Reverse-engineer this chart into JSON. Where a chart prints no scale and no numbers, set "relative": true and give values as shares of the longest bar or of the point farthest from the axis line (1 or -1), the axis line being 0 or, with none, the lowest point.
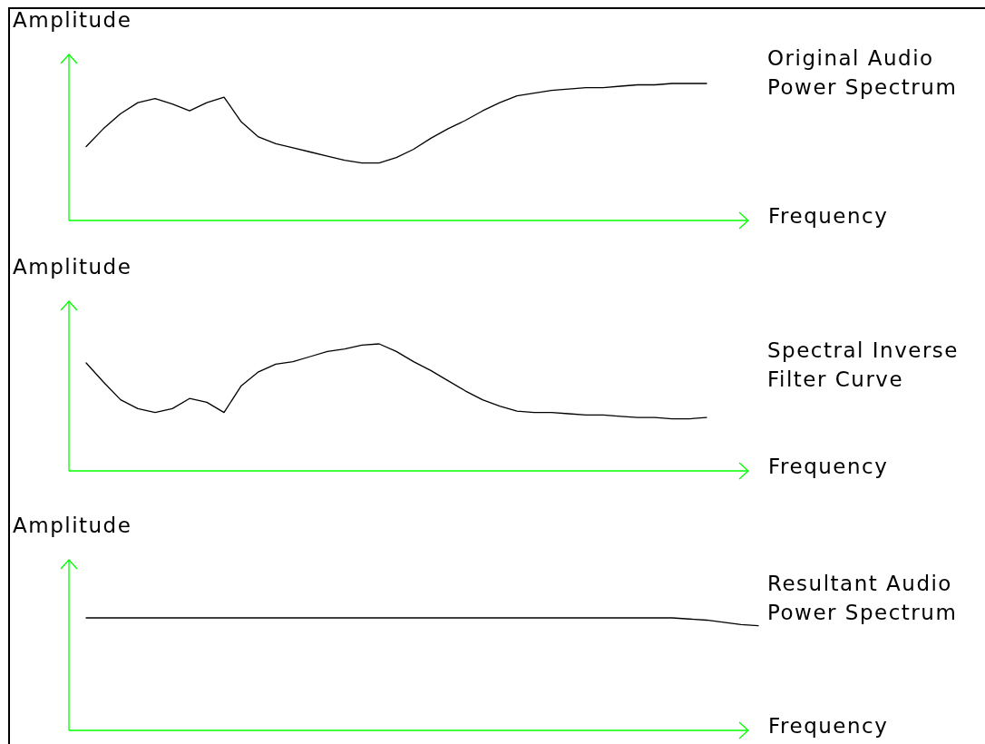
{
  "chart_data": [
    {
      "type": "line",
      "relative": true,
      "tick_labels": false,
      "xlabel": "Frequency",
      "ylabel": "Amplitude",
      "categories": [
        null,
        null,
        null,
        null,
        null,
        null,
        null,
        null,
        null,
        null,
        null,
        null,
        null,
        null,
        null,
        null,
        null,
        null,
        null,
        null,
        null,
        null,
        null,
        null,
        null,
        null,
        null,
        null,
        null,
        null,
        null,
        null,
        null,
        null,
        null,
        null,
        null,
        null,
        null,
        null,
        null
      ],
      "series": [
        {
          "name": "Original Audio Power Spectrum",
          "color": "#000000",
          "values": [
            null,
            0.54,
            0.67,
            0.78,
            0.86,
            0.89,
            0.85,
            0.8,
            0.86,
            0.9,
            0.72,
            0.61,
            0.56,
            0.53,
            0.5,
            0.47,
            0.44,
            0.42,
            0.42,
            0.46,
            0.52,
            0.6,
            0.67,
            0.73,
            0.8,
            0.86,
            0.91,
            0.93,
            0.95,
            0.96,
            0.97,
            0.97,
            0.98,
            0.99,
            0.99,
            1,
            1,
            1,
            null,
            null,
            null
          ]
        }
      ]
    },
    {
      "type": "line",
      "relative": true,
      "tick_labels": false,
      "xlabel": "Frequency",
      "ylabel": "Amplitude",
      "categories": [
        null,
        null,
        null,
        null,
        null,
        null,
        null,
        null,
        null,
        null,
        null,
        null,
        null,
        null,
        null,
        null,
        null,
        null,
        null,
        null,
        null,
        null,
        null,
        null,
        null,
        null,
        null,
        null,
        null,
        null,
        null,
        null,
        null,
        null,
        null,
        null,
        null,
        null,
        null,
        null,
        null
      ],
      "series": [
        {
          "name": "Spectral Inverse Filter Curve",
          "color": "#000000",
          "values": [
            null,
            0.85,
            0.7,
            0.56,
            0.49,
            0.46,
            0.49,
            0.57,
            0.54,
            0.46,
            0.67,
            0.78,
            0.84,
            0.86,
            0.9,
            0.94,
            0.96,
            0.99,
            1,
            0.94,
            0.86,
            0.79,
            0.71,
            0.63,
            0.56,
            0.51,
            0.47,
            0.46,
            0.46,
            0.45,
            0.44,
            0.44,
            0.43,
            0.42,
            0.42,
            0.41,
            0.41,
            0.42,
            null,
            null,
            null
          ]
        }
      ]
    },
    {
      "type": "line",
      "relative": true,
      "tick_labels": false,
      "xlabel": "Frequency",
      "ylabel": "Amplitude",
      "categories": [
        null,
        null,
        null,
        null,
        null,
        null,
        null,
        null,
        null,
        null,
        null,
        null,
        null,
        null,
        null,
        null,
        null,
        null,
        null,
        null,
        null,
        null,
        null,
        null,
        null,
        null,
        null,
        null,
        null,
        null,
        null,
        null,
        null,
        null,
        null,
        null,
        null,
        null,
        null,
        null,
        null
      ],
      "series": [
        {
          "name": "Resultant Audio Power Spectrum",
          "color": "#000000",
          "values": [
            null,
            1,
            1,
            1,
            1,
            1,
            1,
            1,
            1,
            1,
            1,
            1,
            1,
            1,
            1,
            1,
            1,
            1,
            1,
            1,
            1,
            1,
            1,
            1,
            1,
            1,
            1,
            1,
            1,
            1,
            1,
            1,
            1,
            1,
            1,
            1,
            0.99,
            0.98,
            0.96,
            0.94,
            0.93
          ]
        }
      ]
    }
  ]
}
